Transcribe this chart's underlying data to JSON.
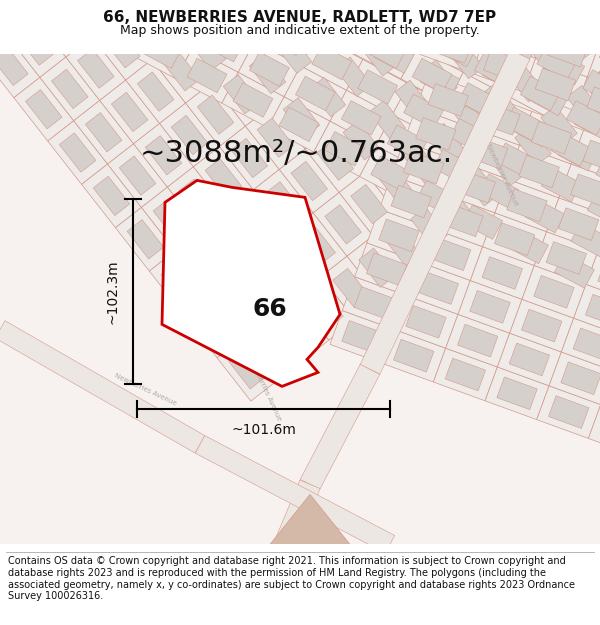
{
  "title": "66, NEWBERRIES AVENUE, RADLETT, WD7 7EP",
  "subtitle": "Map shows position and indicative extent of the property.",
  "area_text": "~3088m²/~0.763ac.",
  "width_label": "~101.6m",
  "height_label": "~102.3m",
  "plot_label": "66",
  "footer": "Contains OS data © Crown copyright and database right 2021. This information is subject to Crown copyright and database rights 2023 and is reproduced with the permission of HM Land Registry. The polygons (including the associated geometry, namely x, y co-ordinates) are subject to Crown copyright and database rights 2023 Ordnance Survey 100026316.",
  "bg_color": "#f7f2ef",
  "map_bg": "#f7f2ef",
  "plot_fill": "#ffffff",
  "plot_edge": "#cc0000",
  "cadastre_fill": "#e8e3e0",
  "cadastre_stroke": "#d4998a",
  "bldg_fill": "#d6d0cc",
  "road_fill": "#f0ebe8",
  "title_fontsize": 11,
  "subtitle_fontsize": 9,
  "area_fontsize": 22,
  "label_fontsize": 18,
  "footer_fontsize": 7,
  "dim_fontsize": 10
}
